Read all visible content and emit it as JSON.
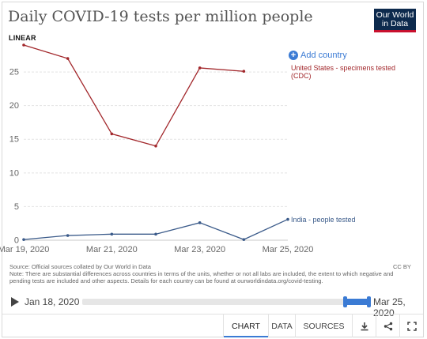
{
  "header": {
    "title": "Daily COVID-19 tests per million people",
    "logo_line1": "Our World",
    "logo_line2": "in Data",
    "scale_toggle": "LINEAR"
  },
  "controls": {
    "add_country": "Add country"
  },
  "chart_data": {
    "type": "line",
    "title": "Daily COVID-19 tests per million people",
    "x": [
      "2020-03-19",
      "2020-03-20",
      "2020-03-21",
      "2020-03-22",
      "2020-03-23",
      "2020-03-24",
      "2020-03-25"
    ],
    "x_tick_labels": [
      "Mar 19, 2020",
      "Mar 21, 2020",
      "Mar 23, 2020",
      "Mar 25, 2020"
    ],
    "y_ticks": [
      0,
      5,
      10,
      15,
      20,
      25
    ],
    "ylim": [
      0,
      29
    ],
    "grid": true,
    "legend": "inline-right",
    "series": [
      {
        "name": "United States - specimens tested (CDC)",
        "name_line1": "United States - specimens tested",
        "name_line2": "(CDC)",
        "color": "#a2272b",
        "values": [
          29.0,
          27.0,
          15.8,
          14.0,
          25.6,
          25.1,
          null
        ]
      },
      {
        "name": "India - people tested",
        "color": "#3b5b8a",
        "values": [
          0.1,
          0.7,
          0.9,
          0.9,
          2.6,
          0.1,
          3.1
        ]
      }
    ]
  },
  "sources": {
    "line1": "Source: Official sources collated by Our World in Data",
    "note": "Note: There are substantial differences across countries in terms of the units, whether or not all labs are included, the extent to which negative and pending tests are included and other aspects. Details for each country can be found at ourworldindata.org/covid-testing.",
    "license": "CC BY"
  },
  "timeline": {
    "start_label": "Jan 18, 2020",
    "end_label": "Mar 25, 2020"
  },
  "footer": {
    "tabs": [
      "CHART",
      "DATA",
      "SOURCES"
    ],
    "icons": [
      "download-icon",
      "share-icon",
      "fullscreen-icon"
    ]
  }
}
